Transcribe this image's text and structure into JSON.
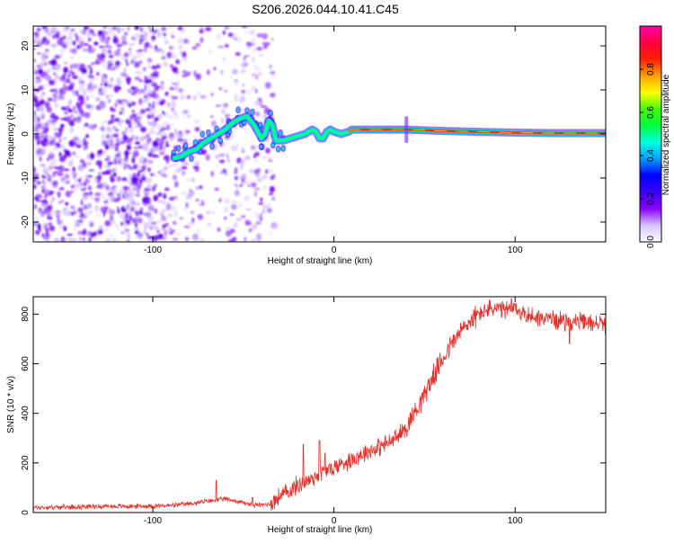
{
  "figure": {
    "title": "S206.2026.044.10.41.C45"
  },
  "chart_data": [
    {
      "type": "heatmap",
      "name": "spectrogram",
      "xlabel": "Height of straight line (km)",
      "ylabel": "Frequency (Hz)",
      "xlim": [
        -166,
        150
      ],
      "ylim": [
        -24.5,
        24.5
      ],
      "xticks": [
        -100,
        0,
        100
      ],
      "yticks": [
        -20,
        -10,
        0,
        10,
        20
      ],
      "ridge": {
        "x": [
          -88,
          -84,
          -80,
          -76,
          -72,
          -68,
          -64,
          -60,
          -56,
          -52,
          -48,
          -46,
          -44,
          -42,
          -40,
          -38,
          -36,
          -34,
          -32,
          -30,
          -28,
          -24,
          -20,
          -16,
          -12,
          -10,
          -8,
          -6,
          -4,
          -2,
          0,
          4,
          8,
          10,
          20,
          40,
          60,
          80,
          100,
          120,
          150
        ],
        "y": [
          -5.5,
          -5,
          -4,
          -3.5,
          -2,
          -1,
          0,
          1,
          2.5,
          3.5,
          4,
          3,
          2,
          0.5,
          -1,
          0,
          3,
          2,
          -1.5,
          -1.5,
          -1.5,
          -1,
          -0.5,
          0,
          1,
          0.5,
          -1,
          -1,
          0.5,
          1,
          0.5,
          0,
          0.5,
          1,
          1,
          1,
          0.7,
          0.5,
          0.3,
          0.2,
          0.2
        ]
      },
      "colorbar": {
        "label": "Normalized spectral amplitude",
        "range": [
          0,
          1
        ],
        "ticks": [
          0.0,
          0.2,
          0.4,
          0.6,
          0.8
        ],
        "tick_labels": [
          "0.0",
          "0.2",
          "0.4",
          "0.6",
          "0.8"
        ],
        "colors": [
          "#ffffff",
          "#d6c3ff",
          "#8a00ff",
          "#3c00ff",
          "#0000ff",
          "#00a0ff",
          "#00ffe0",
          "#00ff40",
          "#40ff00",
          "#ffff00",
          "#ffa000",
          "#ff2000",
          "#ff0040",
          "#ff00b0"
        ]
      }
    },
    {
      "type": "line",
      "name": "snr",
      "xlabel": "Height of straight line (km)",
      "ylabel": "SNR (10 * v/v)",
      "xlim": [
        -166,
        150
      ],
      "ylim": [
        0,
        870
      ],
      "xticks": [
        -100,
        0,
        100
      ],
      "yticks": [
        0,
        200,
        400,
        600,
        800
      ],
      "line_color": "#e8302a",
      "series": [
        {
          "name": "SNR",
          "x": [
            -166,
            -150,
            -130,
            -110,
            -90,
            -80,
            -70,
            -60,
            -50,
            -45,
            -40,
            -35,
            -30,
            -25,
            -20,
            -15,
            -10,
            -5,
            0,
            5,
            10,
            15,
            20,
            25,
            30,
            35,
            40,
            45,
            50,
            55,
            60,
            65,
            70,
            75,
            80,
            85,
            90,
            95,
            100,
            105,
            110,
            115,
            120,
            130,
            140,
            150
          ],
          "y": [
            20,
            22,
            25,
            25,
            28,
            35,
            45,
            55,
            40,
            30,
            30,
            35,
            65,
            85,
            110,
            125,
            145,
            165,
            180,
            200,
            215,
            235,
            250,
            265,
            280,
            305,
            345,
            410,
            480,
            550,
            620,
            680,
            730,
            770,
            800,
            820,
            820,
            815,
            820,
            800,
            790,
            785,
            780,
            770,
            765,
            760
          ]
        }
      ],
      "spikes": [
        {
          "x": -65,
          "y": 130
        },
        {
          "x": -45,
          "y": 60
        },
        {
          "x": -17,
          "y": 275
        },
        {
          "x": -8,
          "y": 290
        },
        {
          "x": -5,
          "y": 240
        },
        {
          "x": 98,
          "y": 862
        },
        {
          "x": 130,
          "y": 680
        }
      ]
    }
  ]
}
